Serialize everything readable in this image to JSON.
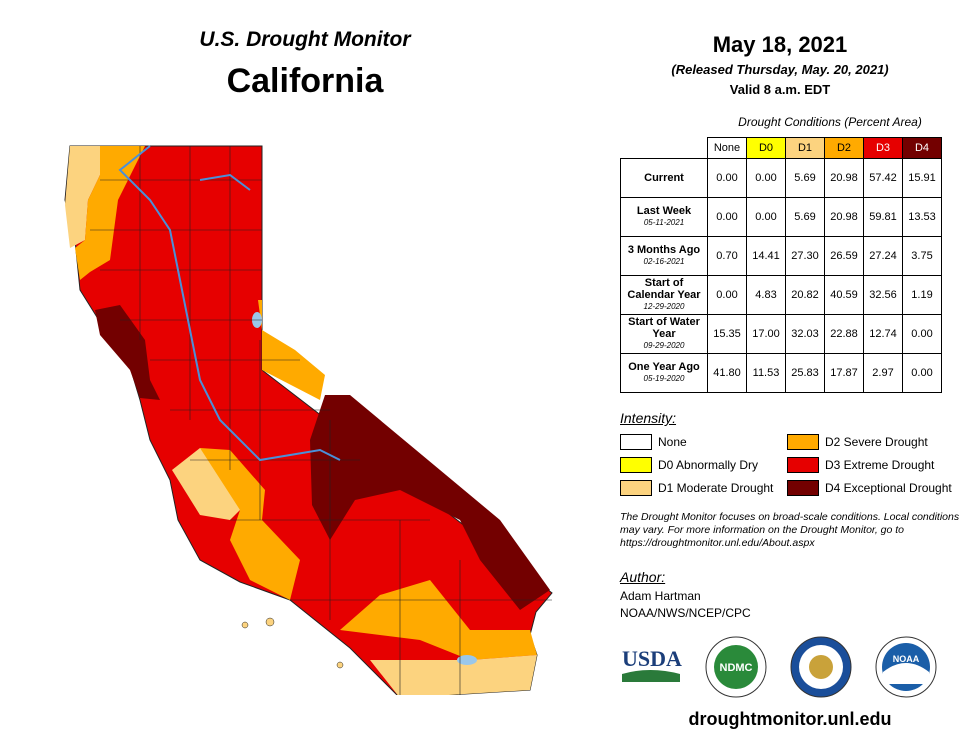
{
  "header": {
    "title": "U.S. Drought Monitor",
    "state": "California",
    "date": "May 18, 2021",
    "released": "(Released Thursday, May. 20, 2021)",
    "valid": "Valid 8 a.m. EDT"
  },
  "table": {
    "title": "Drought Conditions (Percent Area)",
    "columns": [
      "None",
      "D0",
      "D1",
      "D2",
      "D3",
      "D4"
    ],
    "column_colors": [
      "#ffffff",
      "#ffff00",
      "#fcd37f",
      "#ffaa00",
      "#e60000",
      "#730000"
    ],
    "rows": [
      {
        "label": "Current",
        "date": "",
        "values": [
          "0.00",
          "0.00",
          "5.69",
          "20.98",
          "57.42",
          "15.91"
        ]
      },
      {
        "label": "Last Week",
        "date": "05-11-2021",
        "values": [
          "0.00",
          "0.00",
          "5.69",
          "20.98",
          "59.81",
          "13.53"
        ]
      },
      {
        "label": "3 Months Ago",
        "date": "02-16-2021",
        "values": [
          "0.70",
          "14.41",
          "27.30",
          "26.59",
          "27.24",
          "3.75"
        ]
      },
      {
        "label": "Start of Calendar Year",
        "date": "12-29-2020",
        "values": [
          "0.00",
          "4.83",
          "20.82",
          "40.59",
          "32.56",
          "1.19"
        ]
      },
      {
        "label": "Start of Water Year",
        "date": "09-29-2020",
        "values": [
          "15.35",
          "17.00",
          "32.03",
          "22.88",
          "12.74",
          "0.00"
        ]
      },
      {
        "label": "One Year Ago",
        "date": "05-19-2020",
        "values": [
          "41.80",
          "11.53",
          "25.83",
          "17.87",
          "2.97",
          "0.00"
        ]
      }
    ]
  },
  "legend": {
    "title": "Intensity:",
    "items": [
      {
        "label": "None",
        "color": "#ffffff"
      },
      {
        "label": "D0 Abnormally Dry",
        "color": "#ffff00"
      },
      {
        "label": "D1 Moderate Drought",
        "color": "#fcd37f"
      },
      {
        "label": "D2 Severe Drought",
        "color": "#ffaa00"
      },
      {
        "label": "D3 Extreme Drought",
        "color": "#e60000"
      },
      {
        "label": "D4 Exceptional Drought",
        "color": "#730000"
      }
    ]
  },
  "note": "The Drought Monitor focuses on broad-scale conditions. Local conditions may vary. For more information on the Drought Monitor, go to https://droughtmonitor.unl.edu/About.aspx",
  "author": {
    "heading": "Author:",
    "name": "Adam Hartman",
    "org": "NOAA/NWS/NCEP/CPC"
  },
  "logos": {
    "usda": "USDA",
    "ndmc": "NDMC",
    "noaa": "NOAA"
  },
  "url": "droughtmonitor.unl.edu"
}
